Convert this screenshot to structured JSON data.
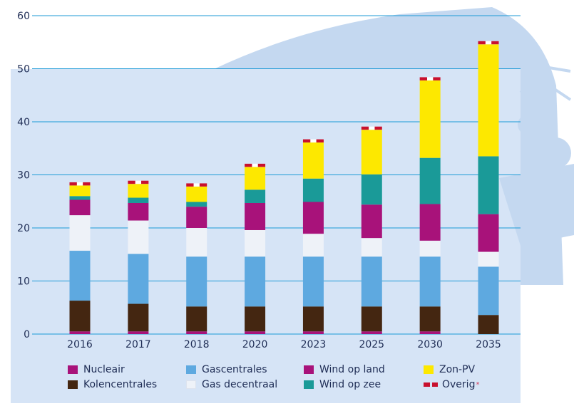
{
  "colors": {
    "panel": "#d6e4f6",
    "decoration": "#c4d8f0",
    "gridline": "#1b9ad6",
    "axis_text": "#1f2d55"
  },
  "chart_data": {
    "type": "bar",
    "stacked": true,
    "categories": [
      "2016",
      "2017",
      "2018",
      "2020",
      "2023",
      "2025",
      "2030",
      "2035"
    ],
    "ylim": [
      0,
      60
    ],
    "yticks": [
      0,
      10,
      20,
      30,
      40,
      50,
      60
    ],
    "grid": true,
    "legend_position": "bottom",
    "xlabel": "",
    "ylabel": "",
    "title": "",
    "series": [
      {
        "name": "Nucleair",
        "color": "#a8127a",
        "values": [
          0.5,
          0.5,
          0.5,
          0.5,
          0.5,
          0.5,
          0.5,
          0
        ]
      },
      {
        "name": "Kolencentrales",
        "color": "#442611",
        "values": [
          5.8,
          5.2,
          4.7,
          4.7,
          4.7,
          4.7,
          4.7,
          3.6
        ]
      },
      {
        "name": "Gascentrales",
        "color": "#5ea9e0",
        "values": [
          9.4,
          9.4,
          9.4,
          9.4,
          9.4,
          9.4,
          9.4,
          9.1
        ]
      },
      {
        "name": "Gas decentraal",
        "color": "#eef2f8",
        "values": [
          6.7,
          6.3,
          5.4,
          5.0,
          4.3,
          3.5,
          3.0,
          2.8
        ]
      },
      {
        "name": "Wind op land",
        "color": "#a8127a",
        "values": [
          2.9,
          3.3,
          4.0,
          5.1,
          6.0,
          6.3,
          6.9,
          7.1
        ]
      },
      {
        "name": "Wind op zee",
        "color": "#1a9a98",
        "values": [
          0.7,
          1.0,
          0.9,
          2.5,
          4.4,
          5.7,
          8.7,
          10.9
        ]
      },
      {
        "name": "Zon-PV",
        "color": "#fde800",
        "values": [
          2.0,
          2.6,
          2.9,
          4.3,
          6.8,
          8.4,
          14.6,
          21.1
        ]
      },
      {
        "name": "Overig",
        "color": "#c8102e",
        "values": [
          0.6,
          0.6,
          0.6,
          0.6,
          0.6,
          0.6,
          0.6,
          0.6
        ]
      }
    ]
  },
  "legend": [
    {
      "label": "Nucleair",
      "color": "#a8127a"
    },
    {
      "label": "Gascentrales",
      "color": "#5ea9e0"
    },
    {
      "label": "Wind op land",
      "color": "#a8127a"
    },
    {
      "label": "Zon-PV",
      "color": "#fde800"
    },
    {
      "label": "Kolencentrales",
      "color": "#442611"
    },
    {
      "label": "Gas decentraal",
      "color": "#eef2f8"
    },
    {
      "label": "Wind op zee",
      "color": "#1a9a98"
    },
    {
      "label": "Overig",
      "color": "#c8102e",
      "marker": "*"
    }
  ]
}
